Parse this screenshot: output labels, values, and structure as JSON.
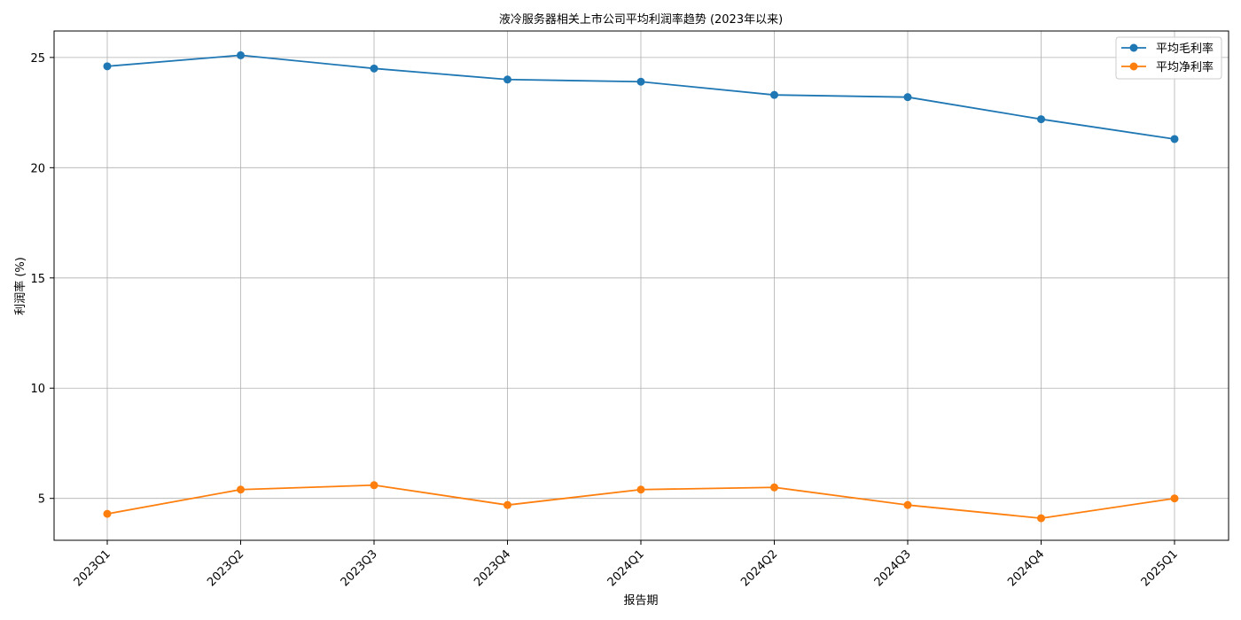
{
  "chart_data": {
    "type": "line",
    "title": "液冷服务器相关上市公司平均利润率趋势 (2023年以来)",
    "xlabel": "报告期",
    "ylabel": "利润率 (%)",
    "categories": [
      "2023Q1",
      "2023Q2",
      "2023Q3",
      "2023Q4",
      "2024Q1",
      "2024Q2",
      "2024Q3",
      "2024Q4",
      "2025Q1"
    ],
    "series": [
      {
        "name": "平均毛利率",
        "color": "#1f77b4",
        "values": [
          24.6,
          25.1,
          24.5,
          24.0,
          23.9,
          23.3,
          23.2,
          22.2,
          21.3
        ]
      },
      {
        "name": "平均净利率",
        "color": "#ff7f0e",
        "values": [
          4.3,
          5.4,
          5.6,
          4.7,
          5.4,
          5.5,
          4.7,
          4.1,
          5.0
        ]
      }
    ],
    "ylim": [
      3.1,
      26.2
    ],
    "yticks": [
      5,
      10,
      15,
      20,
      25
    ],
    "grid": true,
    "legend_position": "top-right",
    "marker": "circle"
  }
}
